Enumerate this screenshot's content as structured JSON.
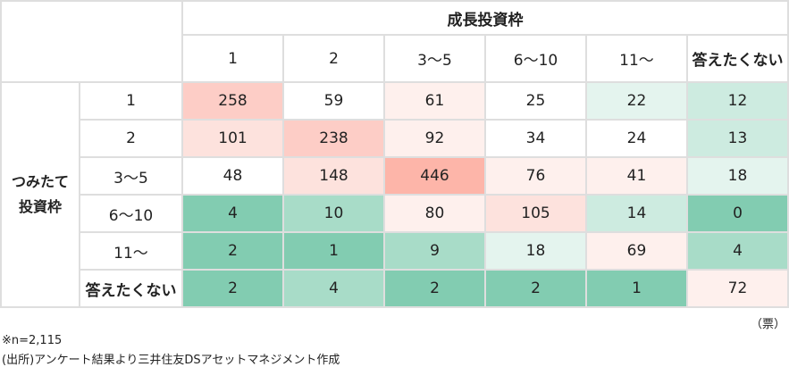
{
  "chart_data": {
    "type": "heatmap",
    "column_group_label": "成長投資枠",
    "row_group_label": [
      "つみたて",
      "投資枠"
    ],
    "columns": [
      "1",
      "2",
      "3〜5",
      "6〜10",
      "11〜",
      "答えたくない"
    ],
    "rows": [
      "1",
      "2",
      "3〜5",
      "6〜10",
      "11〜",
      "答えたくない"
    ],
    "values": [
      [
        258,
        59,
        61,
        25,
        22,
        12
      ],
      [
        101,
        238,
        92,
        34,
        24,
        13
      ],
      [
        48,
        148,
        446,
        76,
        41,
        18
      ],
      [
        4,
        10,
        80,
        105,
        14,
        0
      ],
      [
        2,
        1,
        9,
        18,
        69,
        4
      ],
      [
        2,
        4,
        2,
        2,
        1,
        72
      ]
    ],
    "cell_colors": [
      [
        "#fdcdc6",
        "#ffffff",
        "#fef0ed",
        "#ffffff",
        "#e4f4ee",
        "#cdebe0"
      ],
      [
        "#fde2dd",
        "#fdcdc6",
        "#fef0ed",
        "#ffffff",
        "#ffffff",
        "#cdebe0"
      ],
      [
        "#ffffff",
        "#fde2dd",
        "#fdb5a9",
        "#fef0ed",
        "#fef0ed",
        "#e4f4ee"
      ],
      [
        "#82ccb1",
        "#a8dcc8",
        "#fef0ed",
        "#fde2dd",
        "#cdebe0",
        "#82ccb1"
      ],
      [
        "#82ccb1",
        "#82ccb1",
        "#a8dcc8",
        "#e4f4ee",
        "#fef0ed",
        "#a8dcc8"
      ],
      [
        "#82ccb1",
        "#a8dcc8",
        "#82ccb1",
        "#82ccb1",
        "#82ccb1",
        "#fef0ed"
      ]
    ],
    "unit": "（票）"
  },
  "notes": {
    "n": "※n=2,115",
    "source": "(出所)アンケート結果より三井住友DSアセットマネジメント作成"
  }
}
